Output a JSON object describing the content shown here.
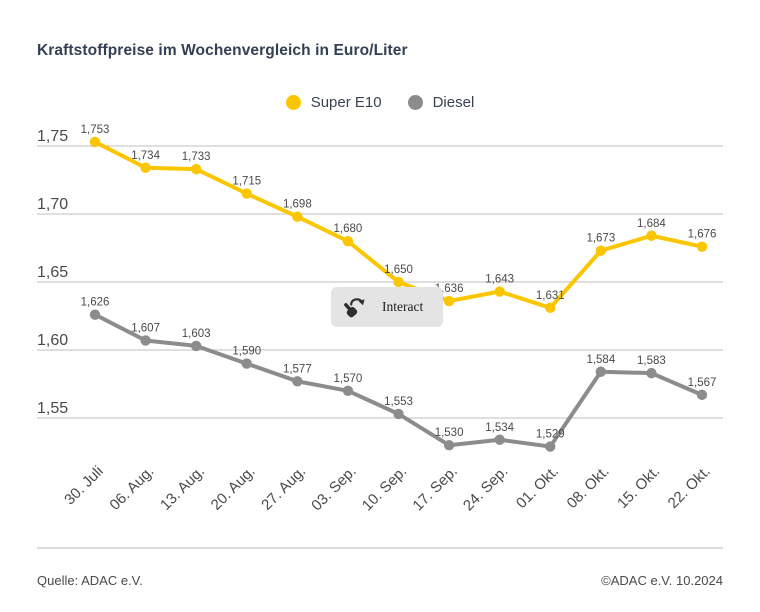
{
  "title": "Kraftstoffpreise im Wochenvergleich in Euro/Liter",
  "interact_button": {
    "label": "Interact"
  },
  "footer": {
    "source": "Quelle: ADAC e.V.",
    "copyright": "©ADAC e.V. 10.2024"
  },
  "chart_data": {
    "type": "line",
    "title": "Kraftstoffpreise im Wochenvergleich in Euro/Liter",
    "categories": [
      "30. Juli",
      "06. Aug.",
      "13. Aug.",
      "20. Aug.",
      "27. Aug.",
      "03. Sep.",
      "10. Sep.",
      "17. Sep.",
      "24. Sep.",
      "01. Okt.",
      "08. Okt.",
      "15. Okt.",
      "22. Okt."
    ],
    "series": [
      {
        "name": "Super E10",
        "color": "#FBC600",
        "values": [
          1.753,
          1.734,
          1.733,
          1.715,
          1.698,
          1.68,
          1.65,
          1.636,
          1.643,
          1.631,
          1.673,
          1.684,
          1.676
        ]
      },
      {
        "name": "Diesel",
        "color": "#8C8C8C",
        "values": [
          1.626,
          1.607,
          1.603,
          1.59,
          1.577,
          1.57,
          1.553,
          1.53,
          1.534,
          1.529,
          1.584,
          1.583,
          1.567
        ]
      }
    ],
    "y_ticks": [
      "1,75",
      "1,70",
      "1,65",
      "1,60",
      "1,55"
    ],
    "y_tick_values": [
      1.75,
      1.7,
      1.65,
      1.6,
      1.55
    ],
    "ylim": [
      1.52,
      1.77
    ],
    "decimal_separator": ",",
    "grid": true,
    "grid_color": "#CCCCCC",
    "legend_position": "top",
    "label_color": "#4A4A4A"
  }
}
